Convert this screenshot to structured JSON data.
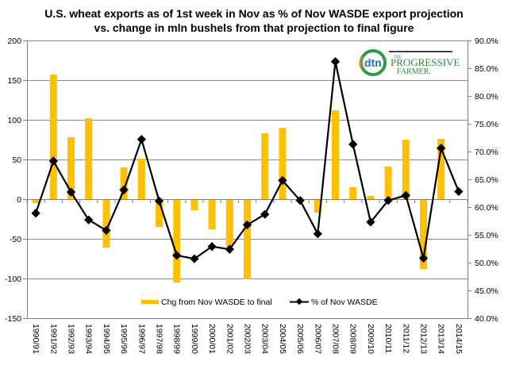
{
  "chart_data": {
    "type": "bar",
    "title": "U.S. wheat exports as of 1st week in Nov as % of Nov WASDE  export projection",
    "subtitle": "vs. change in mln bushels from that projection to final figure",
    "xlabel": "",
    "ylabel": "",
    "categories": [
      "1990/91",
      "1991/92",
      "1992/93",
      "1993/94",
      "1994/95",
      "1995/96",
      "1996/97",
      "1997/98",
      "1998/99",
      "1999/00",
      "2000/01",
      "2001/02",
      "2002/03",
      "2003/04",
      "2004/05",
      "2005/06",
      "2006/07",
      "2007/08",
      "2008/09",
      "2009/10",
      "2010/11",
      "2011/12",
      "2012/13",
      "2013/14",
      "2014/15"
    ],
    "series": [
      {
        "name": "Chg from Nov WASDE to final",
        "type": "bar",
        "axis": "left",
        "color": "#ffc000",
        "values": [
          -5,
          157,
          78,
          102,
          -61,
          40,
          51,
          -35,
          -105,
          -14,
          -38,
          -60,
          -101,
          83,
          90,
          1,
          -17,
          112,
          15,
          4,
          41,
          75,
          -88,
          76,
          null
        ]
      },
      {
        "name": "% of Nov WASDE",
        "type": "line",
        "axis": "right",
        "color": "#000000",
        "values": [
          58.9,
          68.3,
          62.7,
          57.7,
          55.8,
          63.1,
          72.2,
          61.1,
          51.3,
          50.7,
          52.9,
          52.4,
          56.8,
          58.7,
          64.8,
          61.2,
          55.2,
          86.2,
          71.3,
          57.3,
          61.2,
          62.1,
          50.8,
          70.6,
          62.8
        ]
      }
    ],
    "left_axis": {
      "ylim": [
        -150,
        200
      ],
      "ticks": [
        200,
        150,
        100,
        50,
        0,
        -50,
        -100,
        -150
      ],
      "tick_labels": [
        "200",
        "150",
        "100",
        "50",
        "0",
        "-50",
        "-100",
        "-150"
      ]
    },
    "right_axis": {
      "ylim": [
        40,
        90
      ],
      "ticks": [
        90,
        85,
        80,
        75,
        70,
        65,
        60,
        55,
        50,
        45,
        40
      ],
      "tick_labels": [
        "90.0%",
        "85.0%",
        "80.0%",
        "75.0%",
        "70.0%",
        "65.0%",
        "60.0%",
        "55.0%",
        "50.0%",
        "45.0%",
        "40.0%"
      ]
    },
    "grid": true,
    "legend": {
      "position": "bottom-inside",
      "entries": [
        "Chg from Nov WASDE to final",
        "% of Nov WASDE"
      ]
    }
  },
  "logo": {
    "dtn": "dtn",
    "small": "THE",
    "line1": "PROGRESSIVE",
    "line2": "FARMER."
  }
}
